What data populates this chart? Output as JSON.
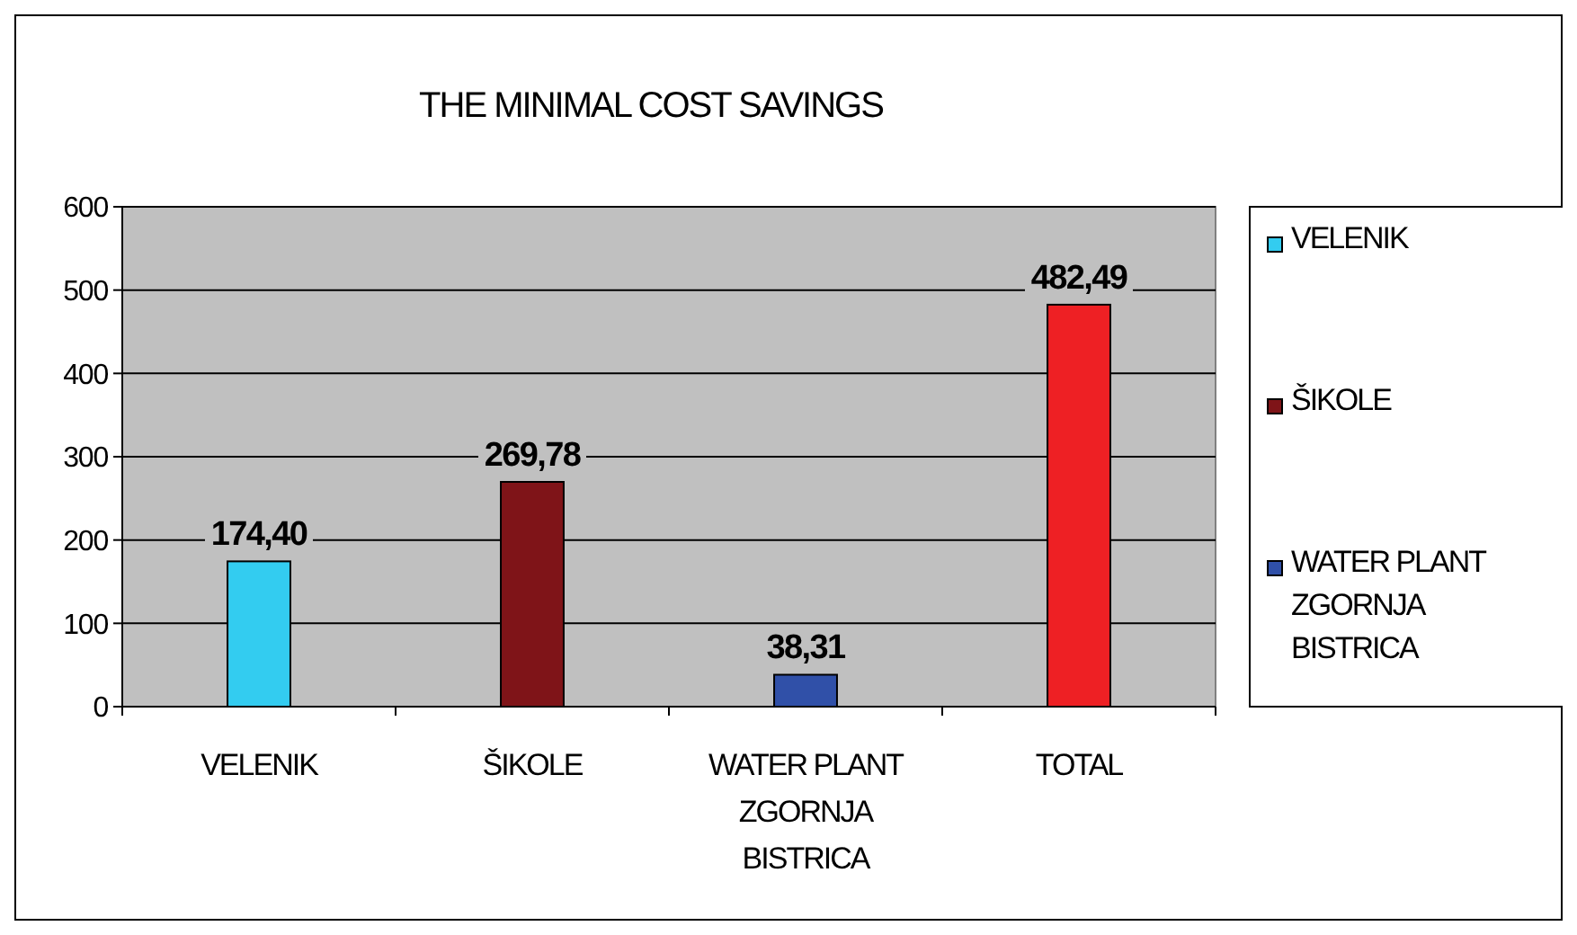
{
  "chart_data": {
    "type": "bar",
    "title": "THE MINIMAL COST SAVINGS",
    "categories": [
      "VELENIK",
      "ŠIKOLE",
      "WATER PLANT ZGORNJA BISTRICA",
      "TOTAL"
    ],
    "ylim": [
      0,
      600
    ],
    "yticks": [
      0,
      100,
      200,
      300,
      400,
      500,
      600
    ],
    "grid": "y",
    "legend": "right",
    "series": [
      {
        "name": "VELENIK",
        "color": "#33ccf0",
        "values": [
          174.4,
          null,
          null,
          null
        ],
        "value_labels": [
          "174,40",
          null,
          null,
          null
        ]
      },
      {
        "name": "ŠIKOLE",
        "color": "#7f1418",
        "values": [
          null,
          269.78,
          null,
          null
        ],
        "value_labels": [
          null,
          "269,78",
          null,
          null
        ]
      },
      {
        "name": "WATER PLANT ZGORNJA BISTRICA",
        "color": "#3050a8",
        "values": [
          null,
          null,
          38.31,
          null
        ],
        "value_labels": [
          null,
          null,
          "38,31",
          null
        ]
      },
      {
        "color": "#ee2024",
        "values": [
          null,
          null,
          null,
          482.49
        ],
        "value_labels": [
          null,
          null,
          null,
          "482,49"
        ]
      }
    ]
  }
}
